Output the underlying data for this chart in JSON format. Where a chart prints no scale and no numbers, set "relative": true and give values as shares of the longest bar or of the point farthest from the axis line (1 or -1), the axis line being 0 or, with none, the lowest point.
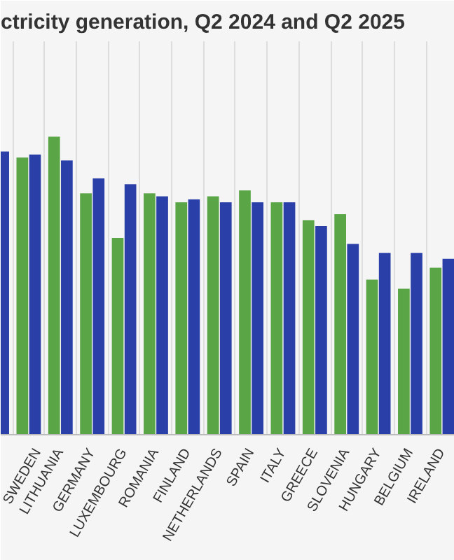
{
  "chart_data": {
    "type": "bar",
    "title": "ctricity generation, Q2 2024 and Q2 2025",
    "relative": true,
    "grid": "x",
    "categories": [
      null,
      "SWEDEN",
      "LITHUANIA",
      "GERMANY",
      "LUXEMBOURG",
      "ROMANIA",
      "FINLAND",
      "NETHERLANDS",
      "SPAIN",
      "ITALY",
      "GREECE",
      "SLOVENIA",
      "HUNGARY",
      "BELGIUM",
      "IRELAND"
    ],
    "series": [
      {
        "color": "#5aa546",
        "values": [
          null,
          0.93,
          1.0,
          0.81,
          0.66,
          0.81,
          0.78,
          0.8,
          0.82,
          0.78,
          0.72,
          0.74,
          0.52,
          0.49,
          0.56
        ]
      },
      {
        "color": "#2a3fa8",
        "values": [
          0.95,
          0.94,
          0.92,
          0.86,
          0.84,
          0.8,
          0.79,
          0.78,
          0.78,
          0.78,
          0.7,
          0.64,
          0.61,
          0.61,
          0.59
        ]
      }
    ]
  }
}
